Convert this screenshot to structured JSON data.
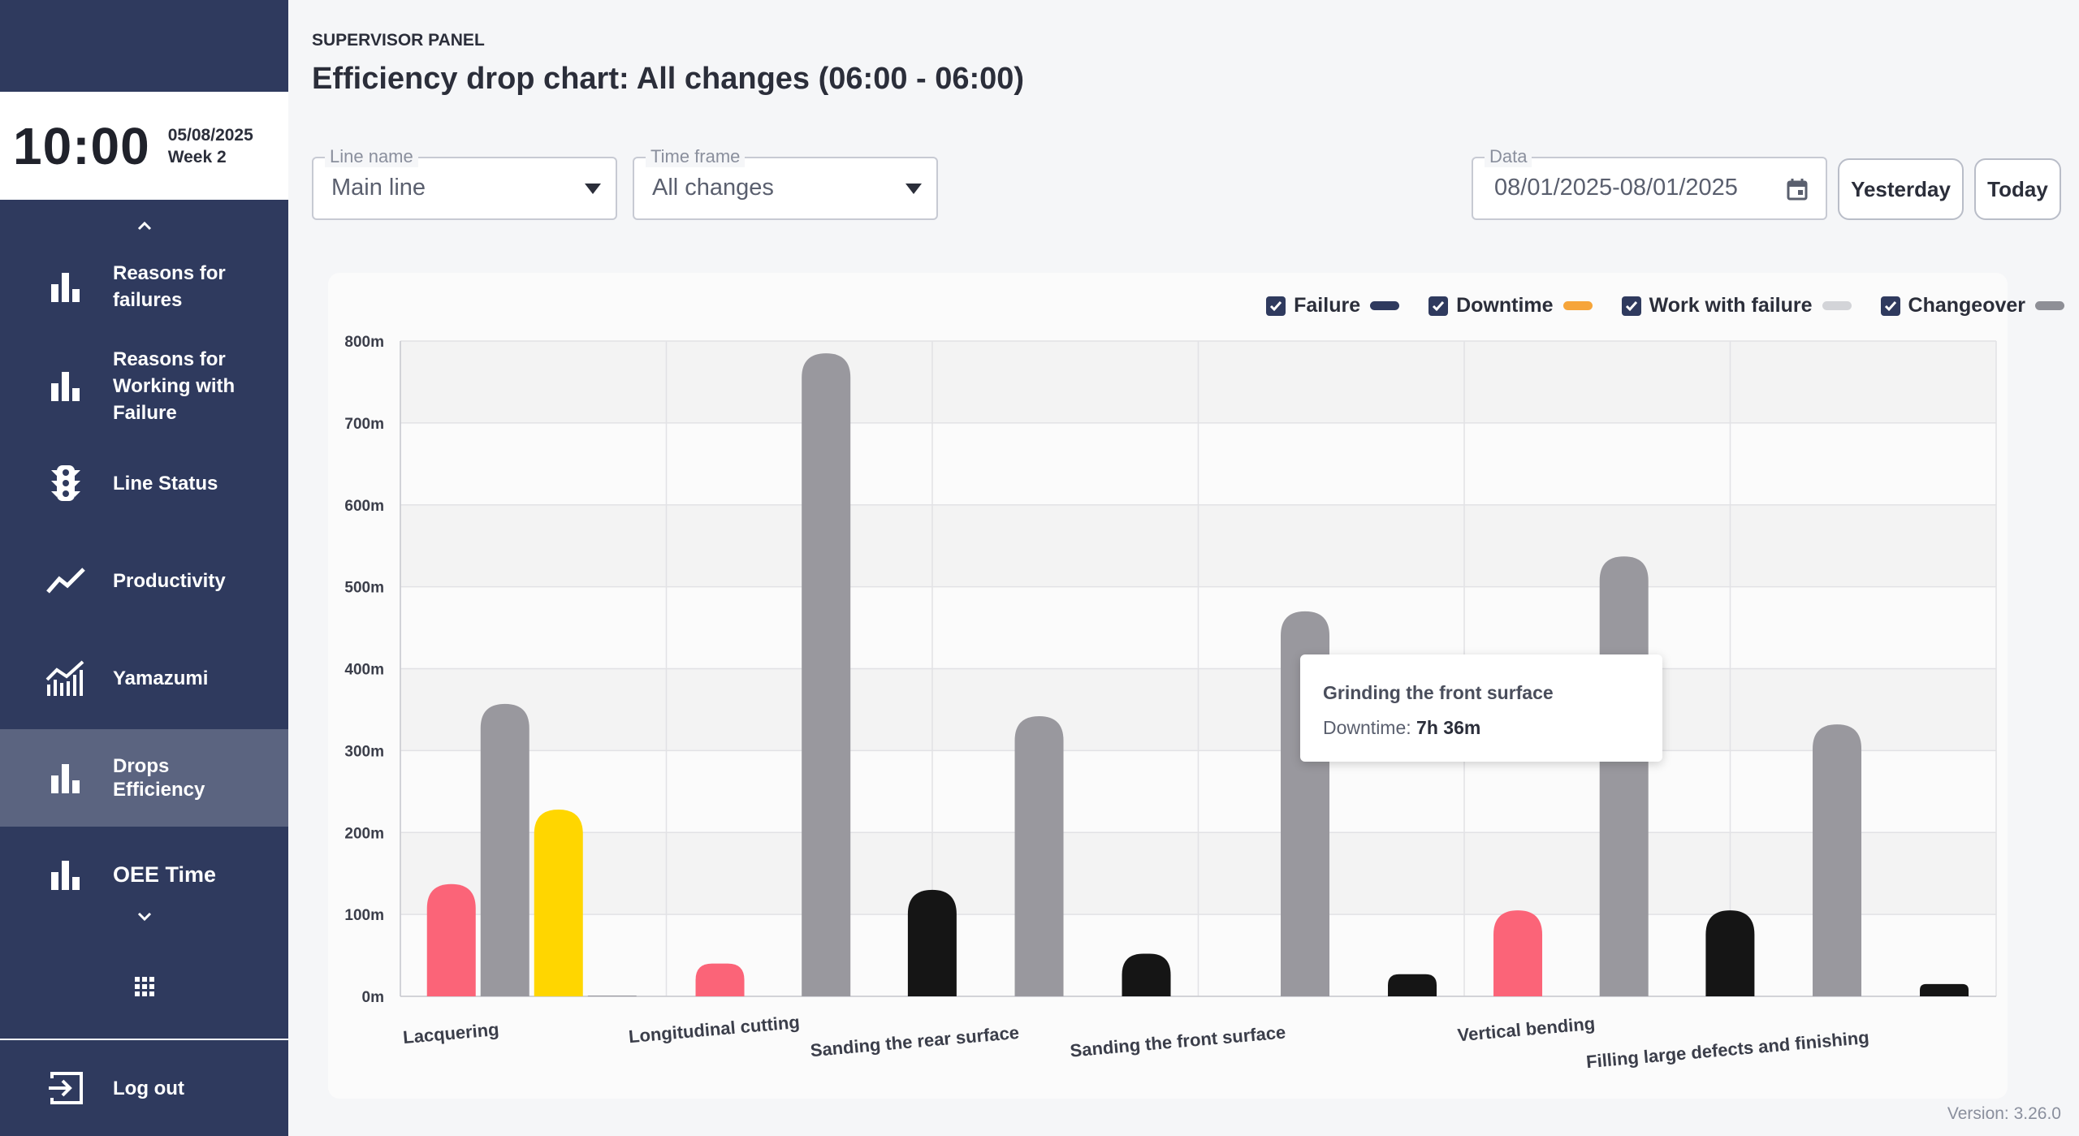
{
  "clock": {
    "time": "10:00",
    "date": "05/08/2025",
    "week": "Week 2"
  },
  "sidebar": {
    "items": [
      {
        "label": "Reasons for failures",
        "icon": "bar-chart-icon"
      },
      {
        "label": "Reasons for Working with Failure",
        "icon": "bar-chart-icon"
      },
      {
        "label": "Line Status",
        "icon": "traffic-light-icon"
      },
      {
        "label": "Productivity",
        "icon": "trend-line-icon"
      },
      {
        "label": "Yamazumi",
        "icon": "stacked-chart-icon"
      },
      {
        "label": "Drops Efficiency",
        "icon": "bar-chart-icon",
        "active": true
      },
      {
        "label": "OEE Time",
        "icon": "bar-chart-icon"
      }
    ],
    "logout_label": "Log out"
  },
  "header": {
    "panel_label": "SUPERVISOR PANEL",
    "title": "Efficiency drop chart: All changes (06:00 - 06:00)"
  },
  "filters": {
    "line_name": {
      "label": "Line name",
      "value": "Main line"
    },
    "time_frame": {
      "label": "Time frame",
      "value": "All changes"
    },
    "date": {
      "label": "Data",
      "value": "08/01/2025-08/01/2025"
    },
    "yesterday_label": "Yesterday",
    "today_label": "Today"
  },
  "legend": [
    {
      "label": "Failure",
      "color": "#2f3a5e"
    },
    {
      "label": "Downtime",
      "color": "#f6a53a"
    },
    {
      "label": "Work with failure",
      "color": "#d3d4d8"
    },
    {
      "label": "Changeover",
      "color": "#8e8f96"
    }
  ],
  "tooltip": {
    "title": "Grinding the front surface",
    "label": "Downtime:",
    "value": "7h 36m"
  },
  "chart_data": {
    "type": "bar",
    "categories": [
      "Lacquering",
      "Longitudinal cutting",
      "Sanding the rear surface",
      "Sanding the front surface",
      "Vertical bending",
      "Filling large defects and finishing"
    ],
    "y_ticks": [
      "0m",
      "100m",
      "200m",
      "300m",
      "400m",
      "500m",
      "600m",
      "700m",
      "800m"
    ],
    "ylim": [
      0,
      800
    ],
    "unit": "minutes",
    "grid": true,
    "legend_position": "top-right",
    "bars": [
      {
        "category_index": 0,
        "value": 137,
        "color": "#fb6478"
      },
      {
        "category_index": 0,
        "value": 357,
        "color": "#99989e"
      },
      {
        "category_index": 0,
        "value": 228,
        "color": "#ffd600"
      },
      {
        "category_index": 0,
        "value": 1,
        "color": "#99989e"
      },
      {
        "category_index": 1,
        "value": 40,
        "color": "#fb6478"
      },
      {
        "category_index": 1,
        "value": 785,
        "color": "#99989e"
      },
      {
        "category_index": 1,
        "value": 130,
        "color": "#151515"
      },
      {
        "category_index": 2,
        "value": 342,
        "color": "#99989e"
      },
      {
        "category_index": 2,
        "value": 52,
        "color": "#151515"
      },
      {
        "category_index": 3,
        "value": 470,
        "color": "#99989e"
      },
      {
        "category_index": 3,
        "value": 27,
        "color": "#151515"
      },
      {
        "category_index": 4,
        "value": 105,
        "color": "#fb6478"
      },
      {
        "category_index": 4,
        "value": 537,
        "color": "#99989e"
      },
      {
        "category_index": 4,
        "value": 105,
        "color": "#151515"
      },
      {
        "category_index": 5,
        "value": 332,
        "color": "#99989e"
      },
      {
        "category_index": 5,
        "value": 15,
        "color": "#151515"
      }
    ]
  },
  "version": "Version: 3.26.0"
}
